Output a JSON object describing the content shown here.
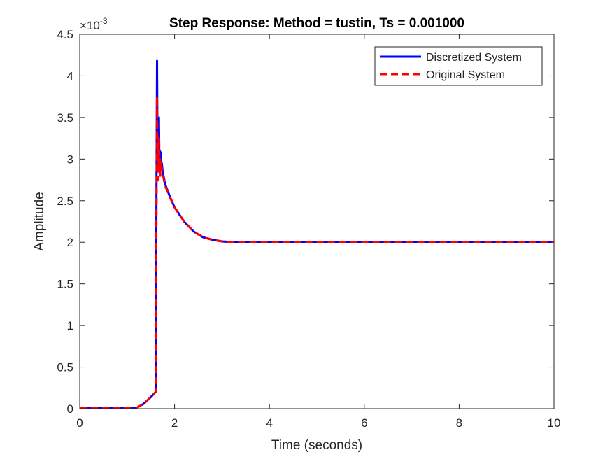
{
  "chart_data": {
    "type": "line",
    "title": "Step Response: Method = tustin, Ts = 0.001000",
    "xlabel": "Time (seconds)",
    "ylabel": "Amplitude",
    "y_exponent_label": "×10",
    "y_exponent_power": "-3",
    "xlim": [
      0,
      10
    ],
    "ylim": [
      0,
      4.5
    ],
    "x_ticks": [
      0,
      2,
      4,
      6,
      8,
      10
    ],
    "x_tick_labels": [
      "0",
      "2",
      "4",
      "6",
      "8",
      "10"
    ],
    "y_ticks": [
      0,
      0.5,
      1,
      1.5,
      2,
      2.5,
      3,
      3.5,
      4,
      4.5
    ],
    "y_tick_labels": [
      "0",
      "0.5",
      "1",
      "1.5",
      "2",
      "2.5",
      "3",
      "3.5",
      "4",
      "4.5"
    ],
    "grid": false,
    "legend_position": "top-right",
    "series": [
      {
        "name": "Discretized System",
        "color": "#0000ff",
        "style": "solid",
        "x": [
          0,
          1.0,
          1.2,
          1.35,
          1.5,
          1.6,
          1.63,
          1.64,
          1.65,
          1.66,
          1.67,
          1.68,
          1.69,
          1.7,
          1.71,
          1.72,
          1.73,
          1.75,
          1.8,
          1.9,
          2.0,
          2.2,
          2.4,
          2.6,
          2.8,
          3.0,
          3.3,
          3.6,
          4,
          5,
          6,
          7,
          8,
          9,
          10
        ],
        "y": [
          0.01,
          0.01,
          0.01,
          0.06,
          0.14,
          0.2,
          4.18,
          3.05,
          3.4,
          2.85,
          3.5,
          2.95,
          3.1,
          2.9,
          3.08,
          2.9,
          2.95,
          2.85,
          2.7,
          2.55,
          2.42,
          2.25,
          2.13,
          2.06,
          2.03,
          2.01,
          2.0,
          2.0,
          2.0,
          2.0,
          2.0,
          2.0,
          2.0,
          2.0,
          2.0
        ]
      },
      {
        "name": "Original System",
        "color": "#ff0000",
        "style": "dashed",
        "x": [
          0,
          1.0,
          1.2,
          1.35,
          1.5,
          1.6,
          1.63,
          1.64,
          1.65,
          1.66,
          1.67,
          1.68,
          1.69,
          1.7,
          1.71,
          1.72,
          1.73,
          1.75,
          1.8,
          1.9,
          2.0,
          2.2,
          2.4,
          2.6,
          2.8,
          3.0,
          3.3,
          3.6,
          4,
          5,
          6,
          7,
          8,
          9,
          10
        ],
        "y": [
          0.01,
          0.01,
          0.01,
          0.06,
          0.14,
          0.2,
          3.75,
          2.85,
          3.2,
          2.75,
          3.25,
          2.85,
          3.0,
          2.8,
          2.98,
          2.85,
          2.9,
          2.82,
          2.68,
          2.54,
          2.42,
          2.25,
          2.13,
          2.06,
          2.03,
          2.01,
          2.0,
          2.0,
          2.0,
          2.0,
          2.0,
          2.0,
          2.0,
          2.0,
          2.0
        ]
      }
    ]
  }
}
